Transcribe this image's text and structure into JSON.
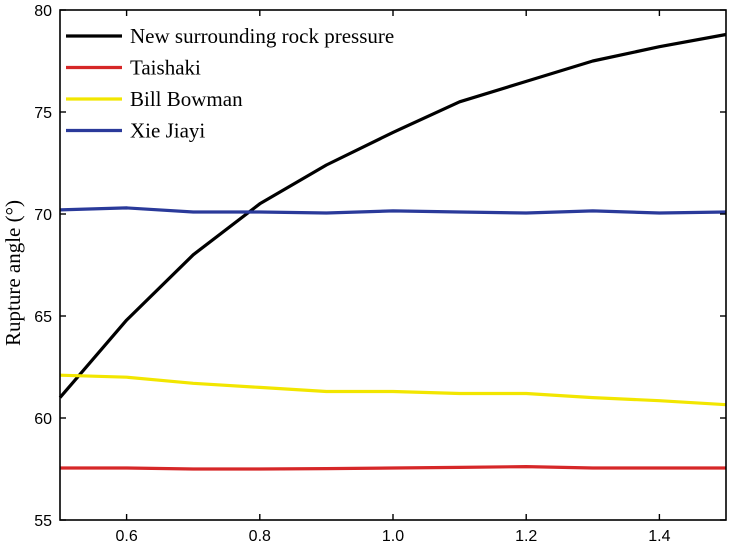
{
  "chart_data": {
    "type": "line",
    "title": "",
    "xlabel": "",
    "ylabel": "Rupture angle (°)",
    "xlim": [
      0.5,
      1.5
    ],
    "ylim": [
      55,
      80
    ],
    "xticks": [
      0.6,
      0.8,
      1.0,
      1.2,
      1.4
    ],
    "xtick_labels": [
      "0.6",
      "0.8",
      "1.0",
      "1.2",
      "1.4"
    ],
    "yticks": [
      55,
      60,
      65,
      70,
      75,
      80
    ],
    "ytick_labels": [
      "55",
      "60",
      "65",
      "70",
      "75",
      "80"
    ],
    "grid": false,
    "legend_position": "top-left",
    "series": [
      {
        "name": "New surrounding rock pressure",
        "color": "#000000",
        "x": [
          0.5,
          0.6,
          0.7,
          0.8,
          0.9,
          1.0,
          1.1,
          1.2,
          1.3,
          1.4,
          1.5
        ],
        "y": [
          61.0,
          64.8,
          68.0,
          70.5,
          72.4,
          74.0,
          75.5,
          76.5,
          77.5,
          78.2,
          78.8
        ]
      },
      {
        "name": "Taishaki",
        "color": "#d62728",
        "x": [
          0.5,
          0.6,
          0.7,
          0.8,
          0.9,
          1.0,
          1.1,
          1.2,
          1.3,
          1.4,
          1.5
        ],
        "y": [
          57.55,
          57.55,
          57.5,
          57.5,
          57.52,
          57.55,
          57.58,
          57.62,
          57.55,
          57.55,
          57.55
        ]
      },
      {
        "name": "Bill Bowman",
        "color": "#f2e600",
        "x": [
          0.5,
          0.6,
          0.7,
          0.8,
          0.9,
          1.0,
          1.1,
          1.2,
          1.3,
          1.4,
          1.5
        ],
        "y": [
          62.1,
          62.0,
          61.7,
          61.5,
          61.3,
          61.3,
          61.2,
          61.2,
          61.0,
          60.85,
          60.65
        ]
      },
      {
        "name": "Xie Jiayi",
        "color": "#2a3a9a",
        "x": [
          0.5,
          0.6,
          0.7,
          0.8,
          0.9,
          1.0,
          1.1,
          1.2,
          1.3,
          1.4,
          1.5
        ],
        "y": [
          70.2,
          70.3,
          70.1,
          70.1,
          70.05,
          70.15,
          70.1,
          70.05,
          70.15,
          70.05,
          70.1
        ]
      }
    ]
  }
}
